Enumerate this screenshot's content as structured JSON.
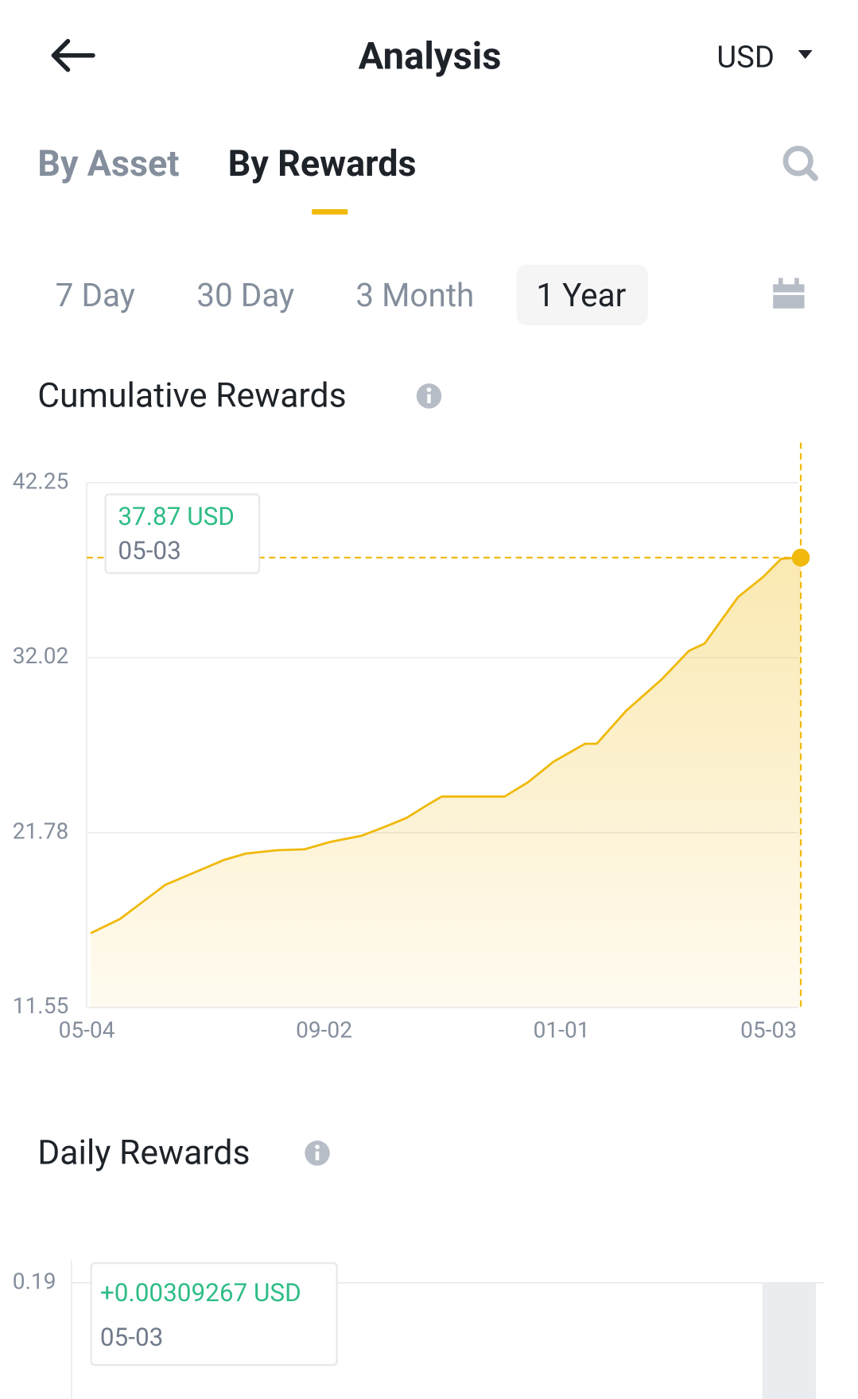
{
  "header": {
    "title": "Analysis",
    "currency": "USD"
  },
  "tabs": [
    "By Asset",
    "By Rewards"
  ],
  "periods": [
    "7 Day",
    "30 Day",
    "3 Month",
    "1 Year"
  ],
  "cumulative": {
    "title": "Cumulative Rewards",
    "chart_data": {
      "type": "area",
      "color": "#f0b90b",
      "x": [
        2,
        17,
        29,
        40,
        56,
        70,
        81,
        97,
        111,
        124,
        140,
        152,
        163,
        174,
        181,
        213,
        225,
        238,
        254,
        260,
        275,
        293,
        307,
        315,
        332,
        345,
        354,
        364
      ],
      "values": [
        15.89,
        16.73,
        17.77,
        18.72,
        19.5,
        20.18,
        20.55,
        20.75,
        20.8,
        21.23,
        21.59,
        22.12,
        22.64,
        23.42,
        23.89,
        23.89,
        24.73,
        25.93,
        26.98,
        26.98,
        28.91,
        30.74,
        32.42,
        32.84,
        35.56,
        36.76,
        37.8,
        37.87
      ],
      "xlim": [
        0,
        364
      ],
      "xticks": [
        {
          "value": 0,
          "label": "05-04"
        },
        {
          "value": 121,
          "label": "09-02"
        },
        {
          "value": 242,
          "label": "01-01"
        },
        {
          "value": 364,
          "label": "05-03"
        }
      ],
      "ylim": [
        11.55,
        42.25
      ],
      "yticks": [
        11.55,
        21.78,
        32.02,
        42.25
      ],
      "grid": true,
      "tooltip": {
        "label": "37.87 USD",
        "date": "05-03"
      }
    }
  },
  "daily": {
    "title": "Daily Rewards",
    "chart_data": {
      "type": "bar",
      "yticks": [
        0.19
      ],
      "grid": true,
      "tooltip": {
        "label": "+0.00309267 USD",
        "date": "05-03"
      }
    }
  }
}
